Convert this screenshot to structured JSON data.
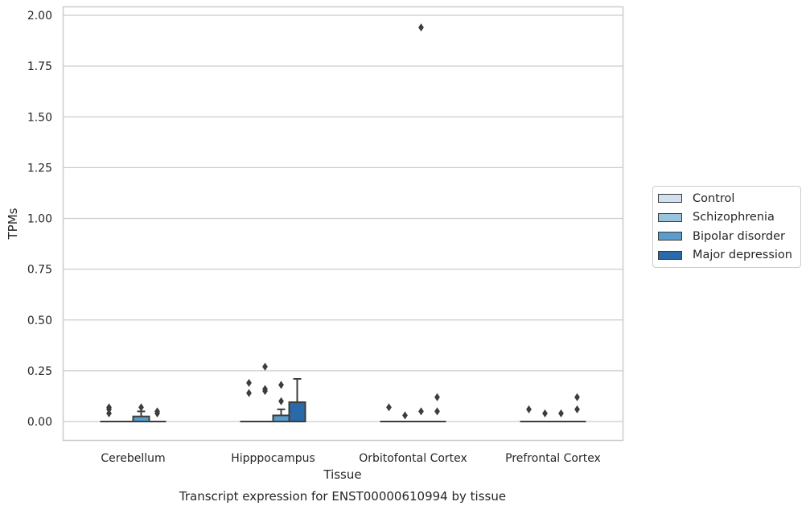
{
  "chart_data": {
    "type": "box",
    "title": "Transcript expression for ENST00000610994 by tissue",
    "xlabel": "Tissue",
    "ylabel": "TPMs",
    "ylim": [
      -0.095,
      2.04
    ],
    "yticks": [
      "0.00",
      "0.25",
      "0.50",
      "0.75",
      "1.00",
      "1.25",
      "1.50",
      "1.75",
      "2.00"
    ],
    "grid": "horizontal",
    "legend_position": "right",
    "categories": [
      "Cerebellum",
      "Hipppocampus",
      "Orbitofontal Cortex",
      "Prefrontal Cortex"
    ],
    "series": [
      {
        "name": "Control",
        "color": "#d0e0ee",
        "boxes": [
          {
            "q1": 0,
            "median": 0,
            "q3": 0,
            "whisker_low": 0,
            "whisker_high": 0,
            "outliers": [
              0.04,
              0.06,
              0.07
            ]
          },
          {
            "q1": 0,
            "median": 0,
            "q3": 0,
            "whisker_low": 0,
            "whisker_high": 0,
            "outliers": [
              0.14,
              0.19
            ]
          },
          {
            "q1": 0,
            "median": 0,
            "q3": 0,
            "whisker_low": 0,
            "whisker_high": 0,
            "outliers": [
              0.07
            ]
          },
          {
            "q1": 0,
            "median": 0,
            "q3": 0,
            "whisker_low": 0,
            "whisker_high": 0,
            "outliers": [
              0.06
            ]
          }
        ]
      },
      {
        "name": "Schizophrenia",
        "color": "#9ac4dd",
        "boxes": [
          {
            "q1": 0,
            "median": 0,
            "q3": 0,
            "whisker_low": 0,
            "whisker_high": 0,
            "outliers": []
          },
          {
            "q1": 0,
            "median": 0,
            "q3": 0,
            "whisker_low": 0,
            "whisker_high": 0,
            "outliers": [
              0.15,
              0.16,
              0.27
            ]
          },
          {
            "q1": 0,
            "median": 0,
            "q3": 0,
            "whisker_low": 0,
            "whisker_high": 0,
            "outliers": [
              0.03
            ]
          },
          {
            "q1": 0,
            "median": 0,
            "q3": 0,
            "whisker_low": 0,
            "whisker_high": 0,
            "outliers": [
              0.04
            ]
          }
        ]
      },
      {
        "name": "Bipolar disorder",
        "color": "#5a9ccb",
        "boxes": [
          {
            "q1": 0,
            "median": 0,
            "q3": 0.025,
            "whisker_low": 0,
            "whisker_high": 0.05,
            "outliers": [
              0.07
            ]
          },
          {
            "q1": 0,
            "median": 0,
            "q3": 0.03,
            "whisker_low": 0,
            "whisker_high": 0.06,
            "outliers": [
              0.1,
              0.18
            ]
          },
          {
            "q1": 0,
            "median": 0,
            "q3": 0,
            "whisker_low": 0,
            "whisker_high": 0,
            "outliers": [
              0.05,
              1.94
            ]
          },
          {
            "q1": 0,
            "median": 0,
            "q3": 0,
            "whisker_low": 0,
            "whisker_high": 0,
            "outliers": [
              0.04
            ]
          }
        ]
      },
      {
        "name": "Major depression",
        "color": "#2a6aaa",
        "boxes": [
          {
            "q1": 0,
            "median": 0,
            "q3": 0,
            "whisker_low": 0,
            "whisker_high": 0,
            "outliers": [
              0.04,
              0.05
            ]
          },
          {
            "q1": 0,
            "median": 0,
            "q3": 0.095,
            "whisker_low": 0,
            "whisker_high": 0.21,
            "outliers": []
          },
          {
            "q1": 0,
            "median": 0,
            "q3": 0,
            "whisker_low": 0,
            "whisker_high": 0,
            "outliers": [
              0.05,
              0.12
            ]
          },
          {
            "q1": 0,
            "median": 0,
            "q3": 0,
            "whisker_low": 0,
            "whisker_high": 0,
            "outliers": [
              0.06,
              0.12
            ]
          }
        ]
      }
    ]
  }
}
